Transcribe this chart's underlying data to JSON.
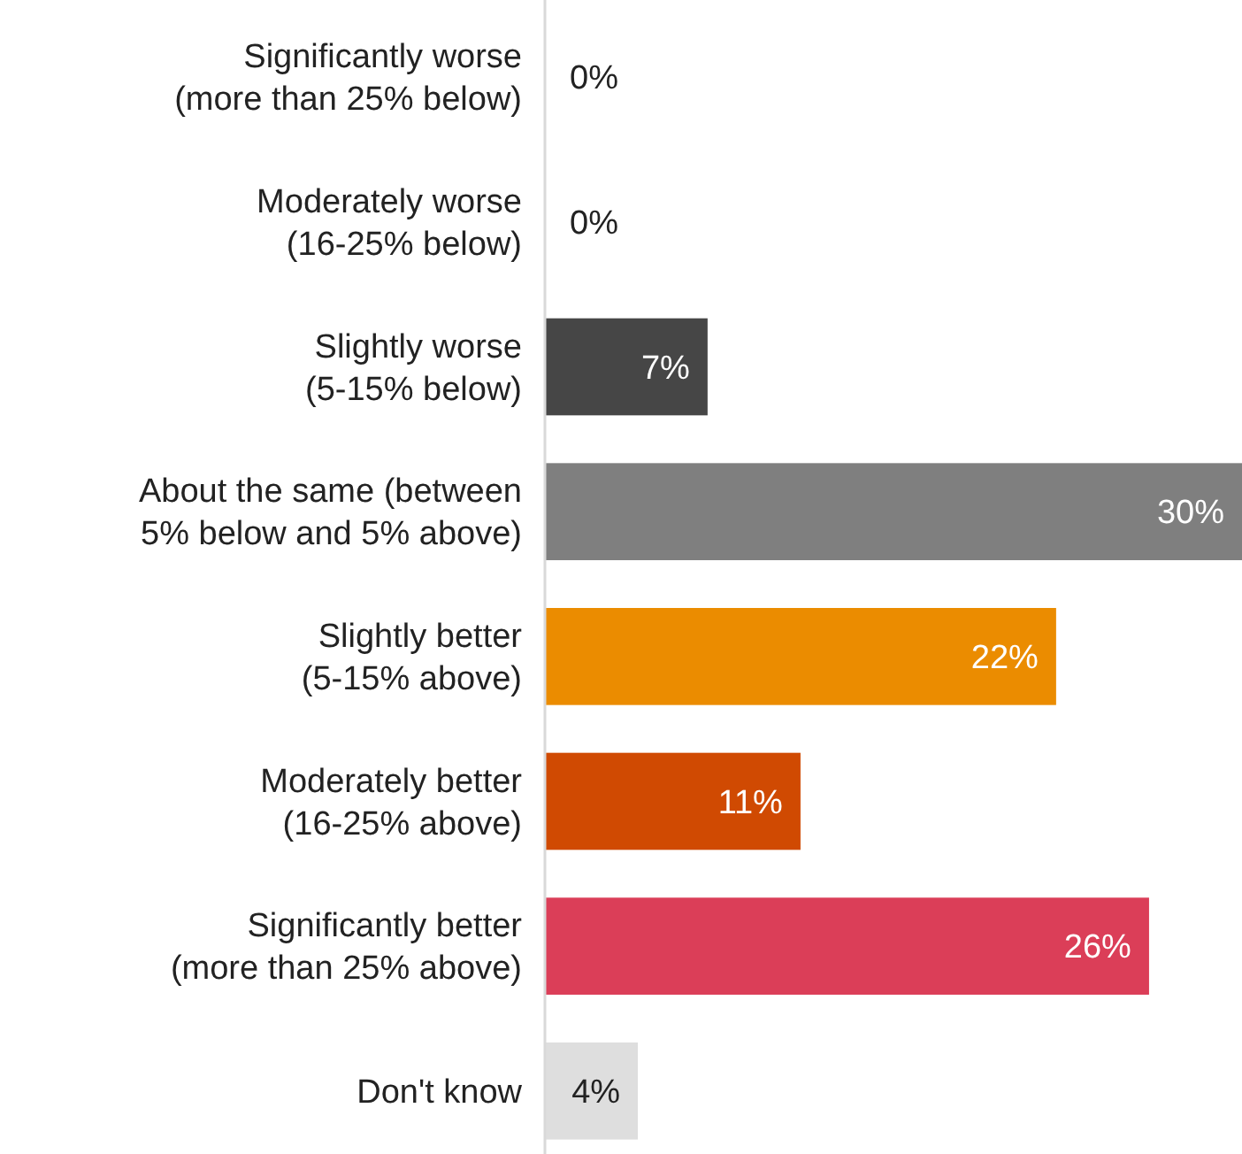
{
  "chart_data": {
    "type": "bar",
    "orientation": "horizontal",
    "categories": [
      "Significantly worse\n(more than 25% below)",
      "Moderately worse\n(16-25% below)",
      "Slightly worse\n(5-15% below)",
      "About the same (between\n5% below and 5% above)",
      "Slightly better\n(5-15% above)",
      "Moderately better\n(16-25% above)",
      "Significantly better\n(more than 25% above)",
      "Don't know"
    ],
    "values": [
      0,
      0,
      7,
      30,
      22,
      11,
      26,
      4
    ],
    "colors": [
      "#464646",
      "#464646",
      "#464646",
      "#7f7f7f",
      "#eb8c00",
      "#d04a02",
      "#db3e58",
      "#dedede"
    ],
    "value_labels": [
      "0%",
      "0%",
      "7%",
      "30%",
      "22%",
      "11%",
      "26%",
      "4%"
    ]
  }
}
